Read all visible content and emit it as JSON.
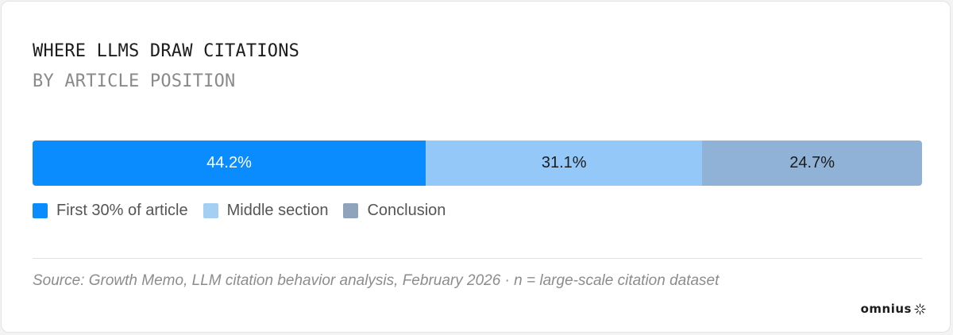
{
  "header": {
    "title": "WHERE LLMS DRAW CITATIONS",
    "subtitle": "BY ARTICLE POSITION"
  },
  "chart_data": {
    "type": "bar",
    "orientation": "horizontal-stacked-100",
    "title": "WHERE LLMS DRAW CITATIONS",
    "subtitle": "BY ARTICLE POSITION",
    "categories": [
      "First 30% of article",
      "Middle section",
      "Conclusion"
    ],
    "values": [
      44.2,
      31.1,
      24.7
    ],
    "data_labels": [
      "44.2%",
      "31.1%",
      "24.7%"
    ],
    "colors": [
      "#0a8cff",
      "#93c8f8",
      "#8fb2d6"
    ],
    "label_colors": [
      "#ffffff",
      "#1c1c1c",
      "#1c1c1c"
    ],
    "legend_colors": [
      "#0a8cff",
      "#a4cff3",
      "#8fa4ba"
    ],
    "legend_position": "bottom-left",
    "grid": false
  },
  "legend": [
    {
      "label": "First 30% of article"
    },
    {
      "label": "Middle section"
    },
    {
      "label": "Conclusion"
    }
  ],
  "footer": {
    "source": "Source: Growth Memo, LLM citation behavior analysis, February 2026 · n = large-scale citation dataset",
    "brand": "omnius",
    "brand_icon": "sunburst-icon"
  }
}
